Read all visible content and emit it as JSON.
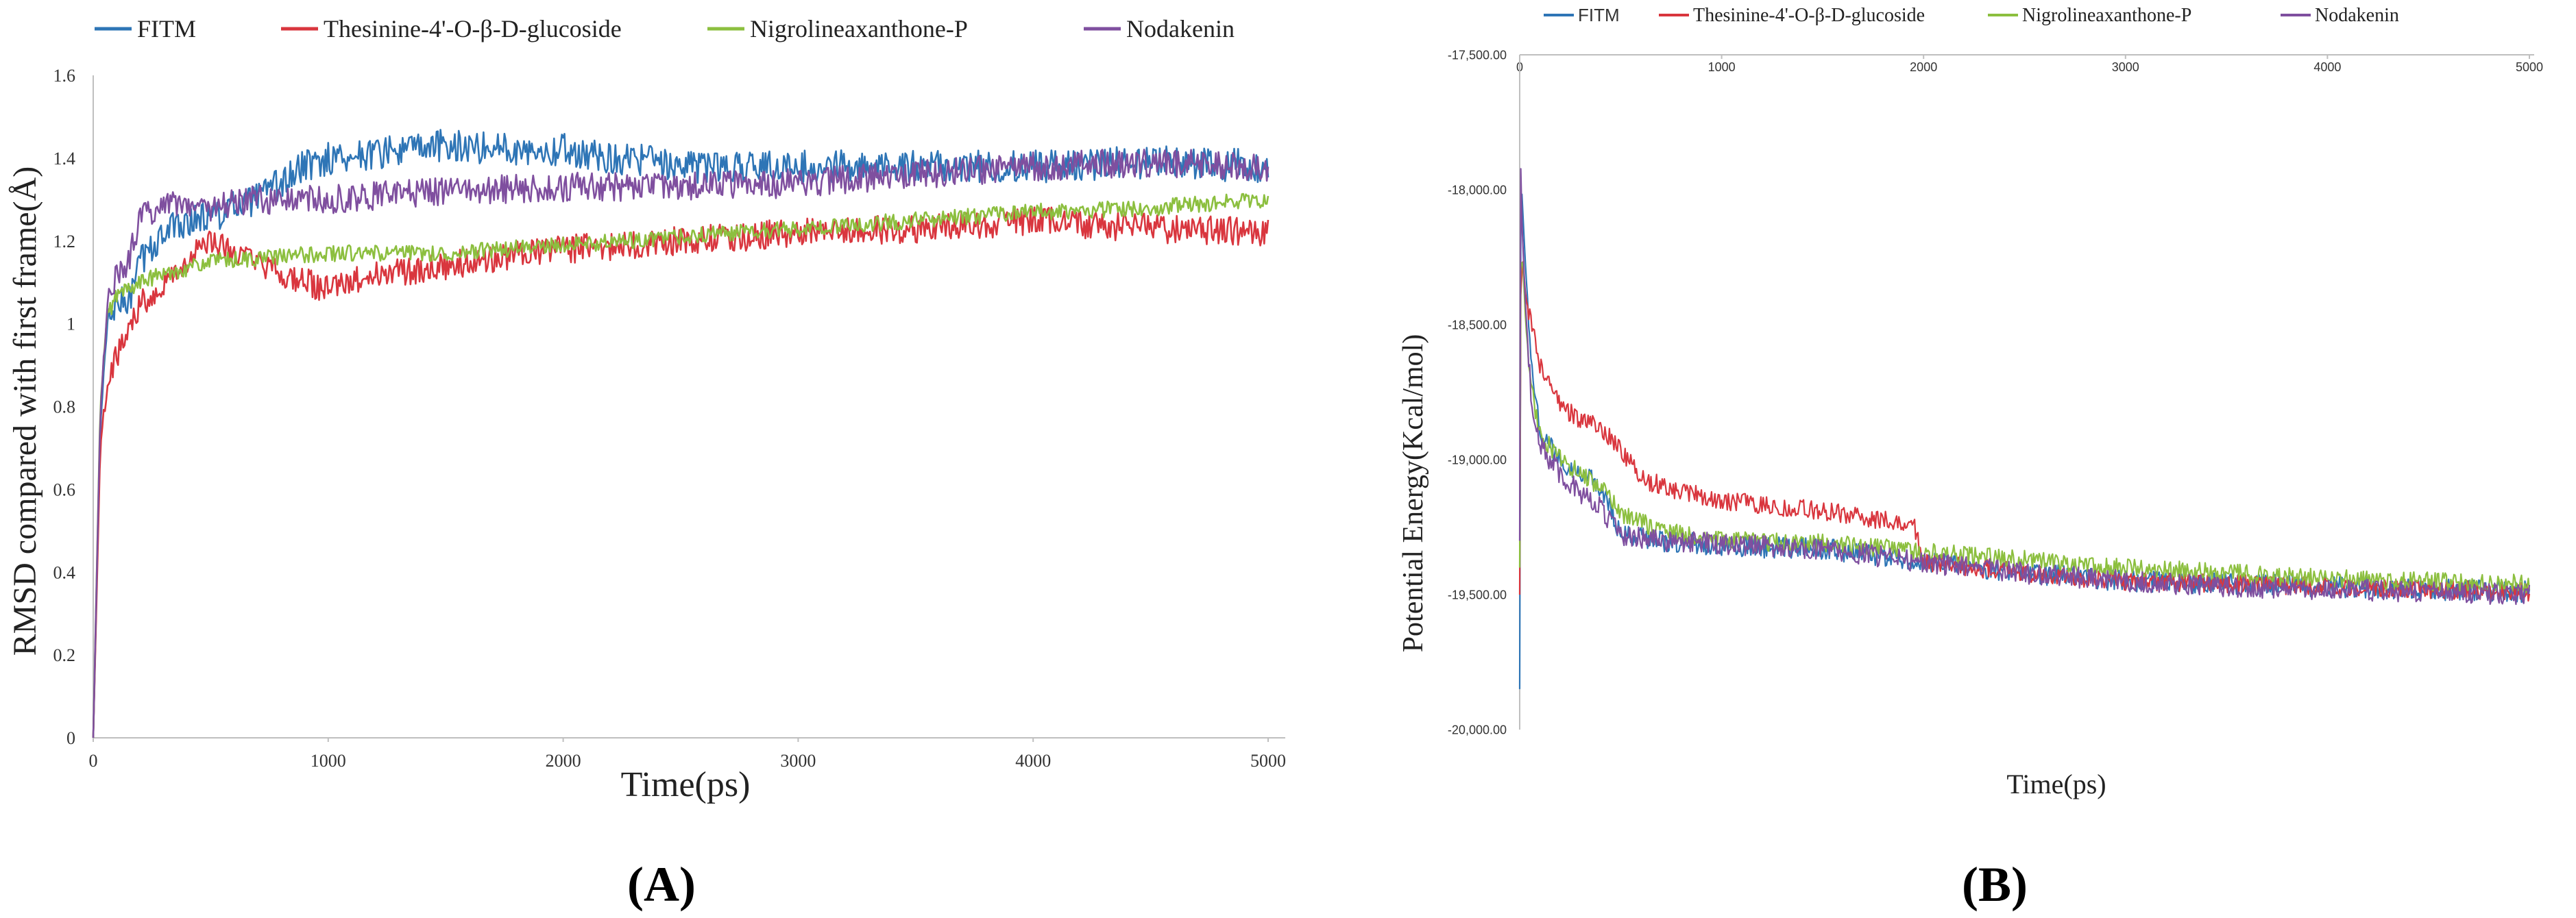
{
  "figure": {
    "panel_a_label": "(A)",
    "panel_b_label": "(B)"
  },
  "colors": {
    "FITM": "#2e75b6",
    "Thesinine": "#d9363e",
    "Nigrolineaxanthone": "#8cbf3f",
    "Nodakenin": "#7f4f9f"
  },
  "chart_data": [
    {
      "id": "A",
      "type": "line",
      "title": "",
      "xlabel": "Time(ps)",
      "ylabel": "RMSD compared with first frame(Å)",
      "xlim": [
        0,
        5000
      ],
      "ylim": [
        0,
        1.6
      ],
      "xticks": [
        0,
        1000,
        2000,
        3000,
        4000,
        5000
      ],
      "yticks": [
        0,
        0.2,
        0.4,
        0.6,
        0.8,
        1,
        1.2,
        1.4,
        1.6
      ],
      "ytick_labels": [
        "0",
        "0.2",
        "0.4",
        "0.6",
        "0.8",
        "1",
        "1.2",
        "1.4",
        "1.6"
      ],
      "legend": "top",
      "series": [
        {
          "name": "FITM",
          "color_key": "FITM",
          "noise": 0.04,
          "x": [
            0,
            30,
            60,
            100,
            150,
            200,
            300,
            400,
            500,
            700,
            900,
            1000,
            1500,
            2000,
            2500,
            3000,
            3500,
            4000,
            4500,
            5000
          ],
          "y": [
            0,
            0.75,
            1.0,
            1.05,
            1.05,
            1.15,
            1.22,
            1.25,
            1.26,
            1.3,
            1.38,
            1.4,
            1.43,
            1.42,
            1.38,
            1.38,
            1.38,
            1.38,
            1.39,
            1.38
          ]
        },
        {
          "name": "Thesinine-4'-O-β-D-glucoside",
          "color_key": "Thesinine",
          "noise": 0.035,
          "x": [
            0,
            30,
            60,
            100,
            200,
            300,
            400,
            500,
            600,
            800,
            1000,
            1200,
            1500,
            2000,
            2500,
            3000,
            3500,
            4000,
            4500,
            5000
          ],
          "y": [
            0,
            0.7,
            0.87,
            0.92,
            1.05,
            1.1,
            1.15,
            1.2,
            1.17,
            1.12,
            1.08,
            1.12,
            1.14,
            1.18,
            1.2,
            1.22,
            1.23,
            1.25,
            1.23,
            1.22
          ]
        },
        {
          "name": "Nigrolineaxanthone-P",
          "color_key": "Nigrolineaxanthone",
          "noise": 0.02,
          "x": [
            0,
            30,
            60,
            100,
            200,
            300,
            500,
            1000,
            1500,
            2000,
            2500,
            3000,
            3500,
            4000,
            4500,
            5000
          ],
          "y": [
            0,
            0.8,
            1.02,
            1.07,
            1.1,
            1.12,
            1.15,
            1.17,
            1.17,
            1.19,
            1.21,
            1.23,
            1.25,
            1.27,
            1.28,
            1.3
          ]
        },
        {
          "name": "Nodakenin",
          "color_key": "Nodakenin",
          "noise": 0.035,
          "x": [
            0,
            30,
            60,
            100,
            150,
            200,
            300,
            500,
            700,
            1000,
            1500,
            2000,
            2500,
            3000,
            3500,
            4000,
            4500,
            5000
          ],
          "y": [
            0,
            0.78,
            1.05,
            1.12,
            1.15,
            1.25,
            1.3,
            1.28,
            1.3,
            1.3,
            1.32,
            1.33,
            1.33,
            1.34,
            1.36,
            1.38,
            1.39,
            1.38
          ]
        }
      ]
    },
    {
      "id": "B",
      "type": "line",
      "title": "",
      "xlabel": "Time(ps)",
      "ylabel": "Potential Energy(Kcal/mol)",
      "xlim": [
        0,
        5000
      ],
      "ylim": [
        -20000,
        -17500
      ],
      "xticks": [
        0,
        1000,
        2000,
        3000,
        4000,
        5000
      ],
      "yticks": [
        -17500,
        -18000,
        -18500,
        -19000,
        -19500,
        -20000
      ],
      "ytick_labels": [
        "-17,500.00",
        "-18,000.00",
        "-18,500.00",
        "-19,000.00",
        "-19,500.00",
        "-20,000.00"
      ],
      "x_axis_position": "top",
      "legend": "top",
      "series": [
        {
          "name": "FITM",
          "color_key": "FITM",
          "noise": 40,
          "x": [
            0,
            5,
            10,
            30,
            60,
            100,
            200,
            300,
            400,
            500,
            700,
            1000,
            1500,
            2000,
            2500,
            3000,
            3500,
            4000,
            4500,
            5000
          ],
          "y": [
            -19850,
            -18200,
            -18000,
            -18300,
            -18650,
            -18900,
            -19000,
            -19050,
            -19100,
            -19280,
            -19300,
            -19320,
            -19330,
            -19380,
            -19420,
            -19450,
            -19460,
            -19470,
            -19480,
            -19490
          ]
        },
        {
          "name": "Thesinine-4'-O-β-D-glucoside",
          "color_key": "Thesinine",
          "noise": 35,
          "x": [
            0,
            5,
            15,
            30,
            60,
            100,
            200,
            300,
            400,
            500,
            600,
            800,
            1000,
            1500,
            1950,
            2000,
            2500,
            3000,
            3500,
            4000,
            4500,
            5000
          ],
          "y": [
            -19500,
            -18400,
            -18250,
            -18400,
            -18500,
            -18650,
            -18800,
            -18850,
            -18880,
            -18960,
            -19070,
            -19120,
            -19150,
            -19190,
            -19240,
            -19380,
            -19420,
            -19450,
            -19460,
            -19470,
            -19480,
            -19490
          ]
        },
        {
          "name": "Nigrolineaxanthone-P",
          "color_key": "Nigrolineaxanthone",
          "noise": 35,
          "x": [
            0,
            5,
            15,
            30,
            60,
            100,
            200,
            300,
            400,
            500,
            700,
            1000,
            1500,
            2000,
            2500,
            3000,
            3500,
            4000,
            4500,
            5000
          ],
          "y": [
            -19400,
            -18300,
            -18250,
            -18500,
            -18750,
            -18900,
            -19000,
            -19050,
            -19100,
            -19200,
            -19260,
            -19300,
            -19310,
            -19340,
            -19370,
            -19400,
            -19420,
            -19440,
            -19450,
            -19460
          ]
        },
        {
          "name": "Nodakenin",
          "color_key": "Nodakenin",
          "noise": 40,
          "x": [
            0,
            5,
            10,
            30,
            60,
            100,
            200,
            300,
            400,
            500,
            700,
            1000,
            1500,
            2000,
            2500,
            3000,
            3500,
            4000,
            4500,
            5000
          ],
          "y": [
            -19300,
            -17900,
            -18100,
            -18450,
            -18800,
            -18950,
            -19050,
            -19120,
            -19180,
            -19280,
            -19300,
            -19310,
            -19330,
            -19380,
            -19420,
            -19450,
            -19470,
            -19480,
            -19490,
            -19500
          ]
        }
      ]
    }
  ]
}
